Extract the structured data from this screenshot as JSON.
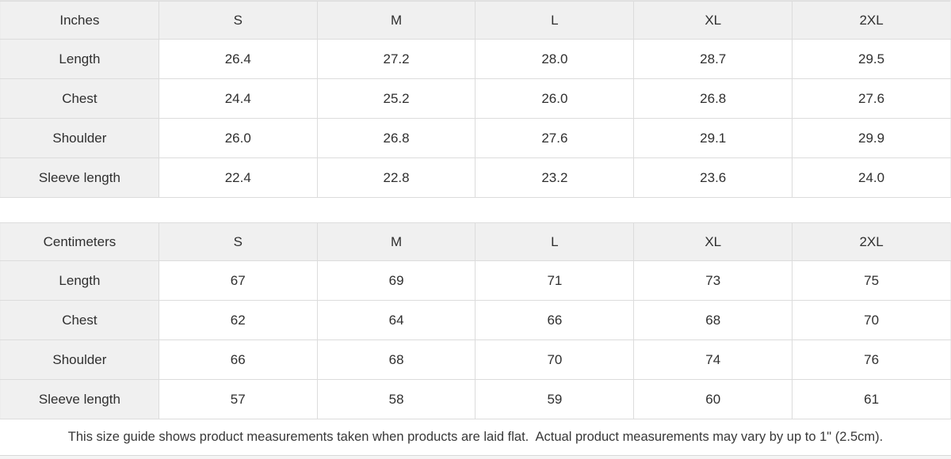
{
  "tables": [
    {
      "unit_header": "Inches",
      "sizes": [
        "S",
        "M",
        "L",
        "XL",
        "2XL"
      ],
      "rows": [
        {
          "label": "Length",
          "values": [
            "26.4",
            "27.2",
            "28.0",
            "28.7",
            "29.5"
          ]
        },
        {
          "label": "Chest",
          "values": [
            "24.4",
            "25.2",
            "26.0",
            "26.8",
            "27.6"
          ]
        },
        {
          "label": "Shoulder",
          "values": [
            "26.0",
            "26.8",
            "27.6",
            "29.1",
            "29.9"
          ]
        },
        {
          "label": "Sleeve length",
          "values": [
            "22.4",
            "22.8",
            "23.2",
            "23.6",
            "24.0"
          ]
        }
      ]
    },
    {
      "unit_header": "Centimeters",
      "sizes": [
        "S",
        "M",
        "L",
        "XL",
        "2XL"
      ],
      "rows": [
        {
          "label": "Length",
          "values": [
            "67",
            "69",
            "71",
            "73",
            "75"
          ]
        },
        {
          "label": "Chest",
          "values": [
            "62",
            "64",
            "66",
            "68",
            "70"
          ]
        },
        {
          "label": "Shoulder",
          "values": [
            "66",
            "68",
            "70",
            "74",
            "76"
          ]
        },
        {
          "label": "Sleeve length",
          "values": [
            "57",
            "58",
            "59",
            "60",
            "61"
          ]
        }
      ]
    }
  ],
  "note": "This size guide shows product measurements taken when products are laid flat.  Actual product measurements may vary by up to 1\" (2.5cm).",
  "colors": {
    "header_cell_bg": "#f0f0f0",
    "label_cell_bg": "#f0f0f0",
    "cell_border": "#dcdcdc",
    "text": "#2f2f2f"
  }
}
